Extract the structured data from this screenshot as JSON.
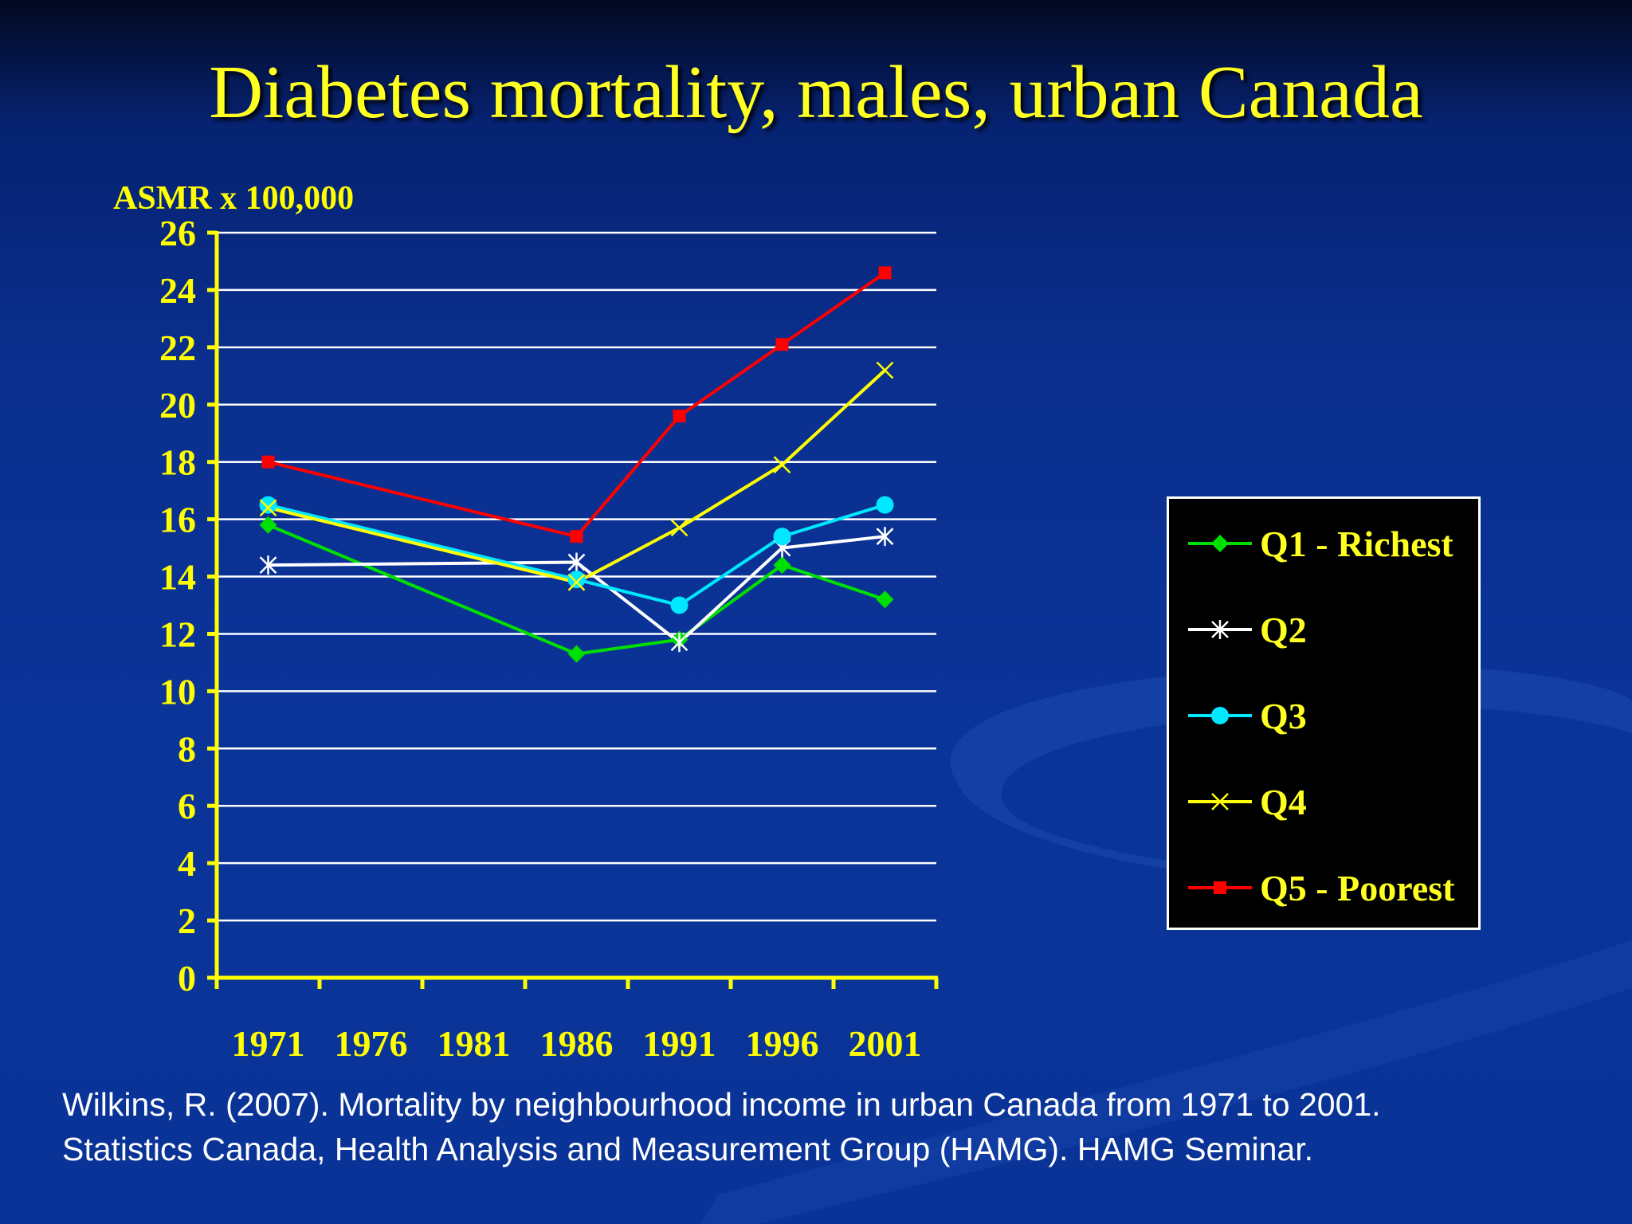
{
  "slide": {
    "title": "Diabetes mortality, males, urban Canada",
    "citation_line1": "Wilkins, R. (2007). Mortality by neighbourhood income in urban Canada from 1971 to 2001.",
    "citation_line2": "Statistics Canada, Health Analysis and Measurement Group (HAMG). HAMG Seminar."
  },
  "colors": {
    "background": "#0a3398",
    "title": "#ffff22",
    "axis": "#ffff00",
    "gridline": "#ffffff",
    "legend_background": "#000000",
    "legend_text": "#ffff22",
    "citation": "#ffffff"
  },
  "chart_data": {
    "type": "line",
    "title": "",
    "ylabel": "ASMR x 100,000",
    "xlabel": "",
    "x": [
      "1971",
      "1976",
      "1981",
      "1986",
      "1991",
      "1996",
      "2001"
    ],
    "ylim": [
      0,
      26
    ],
    "ytick_step": 2,
    "yticks": [
      "0",
      "2",
      "4",
      "6",
      "8",
      "10",
      "12",
      "14",
      "16",
      "18",
      "20",
      "22",
      "24",
      "26"
    ],
    "grid": true,
    "legend_position": "right",
    "series": [
      {
        "name": "Q1 - Richest",
        "color": "#00e000",
        "marker": "diamond",
        "values": [
          15.8,
          null,
          null,
          11.3,
          11.8,
          14.4,
          13.2
        ]
      },
      {
        "name": "Q2",
        "color": "#ffffff",
        "marker": "asterisk",
        "values": [
          14.4,
          null,
          null,
          14.5,
          11.7,
          15.0,
          15.4
        ]
      },
      {
        "name": "Q3",
        "color": "#00e8ff",
        "marker": "circle",
        "values": [
          16.5,
          null,
          null,
          13.9,
          13.0,
          15.4,
          16.5
        ]
      },
      {
        "name": "Q4",
        "color": "#ffff00",
        "marker": "x",
        "values": [
          16.4,
          null,
          null,
          13.8,
          15.7,
          17.9,
          21.2
        ]
      },
      {
        "name": "Q5 - Poorest",
        "color": "#ff0000",
        "marker": "square",
        "values": [
          18.0,
          null,
          null,
          15.4,
          19.6,
          22.1,
          24.6
        ]
      }
    ]
  }
}
